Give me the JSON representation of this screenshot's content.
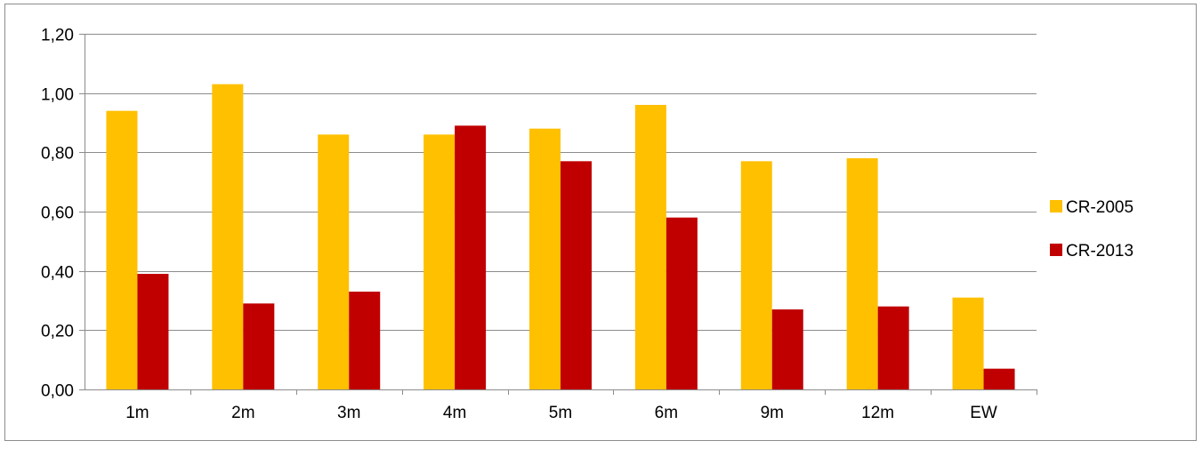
{
  "chart_data": {
    "type": "bar",
    "title": "",
    "xlabel": "",
    "ylabel": "",
    "categories": [
      "1m",
      "2m",
      "3m",
      "4m",
      "5m",
      "6m",
      "9m",
      "12m",
      "EW"
    ],
    "series": [
      {
        "name": "CR-2005",
        "color": "#FFC000",
        "values": [
          0.94,
          1.03,
          0.86,
          0.86,
          0.88,
          0.96,
          0.77,
          0.78,
          0.31
        ]
      },
      {
        "name": "CR-2013",
        "color": "#C00000",
        "values": [
          0.39,
          0.29,
          0.33,
          0.89,
          0.77,
          0.58,
          0.27,
          0.28,
          0.07
        ]
      }
    ],
    "ylim": [
      0,
      1.2
    ],
    "yticks": [
      "0,00",
      "0,20",
      "0,40",
      "0,60",
      "0,80",
      "1,00",
      "1,20"
    ],
    "grid": true,
    "legend_position": "right"
  }
}
